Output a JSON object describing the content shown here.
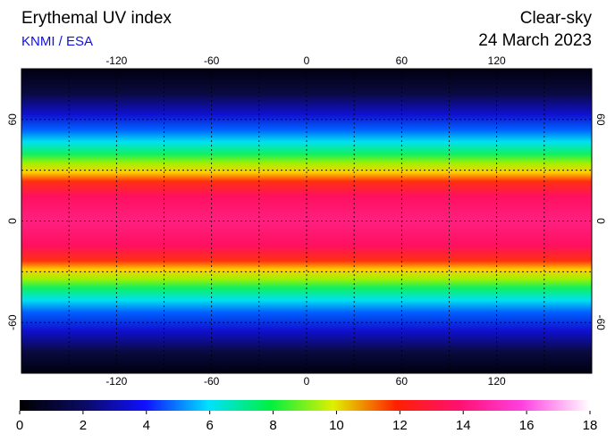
{
  "header": {
    "title": "Erythemal UV index",
    "source": "KNMI / ESA",
    "sky": "Clear-sky",
    "date": "24 March 2023"
  },
  "map": {
    "lon_ticks": [
      -120,
      -60,
      0,
      60,
      120
    ],
    "lat_ticks": [
      -60,
      0,
      60
    ],
    "lon_range": [
      -180,
      180
    ],
    "lat_range": [
      -90,
      90
    ]
  },
  "colorbar": {
    "range": [
      0,
      18
    ],
    "ticks": [
      0,
      2,
      4,
      6,
      8,
      10,
      12,
      14,
      16,
      18
    ]
  }
}
